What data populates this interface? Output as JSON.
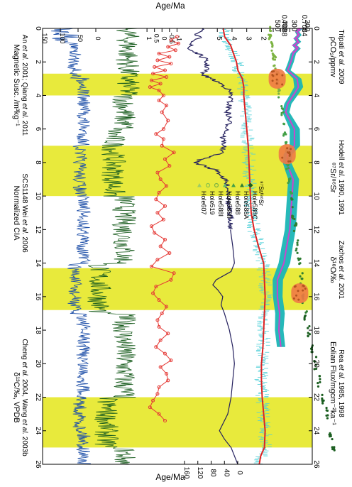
{
  "chart_data": {
    "type": "line",
    "orientation": "age axis vertical (top to bottom), panels stacked left to right, labels rotated",
    "age_axis": {
      "label": "Age/Ma",
      "range": [
        0,
        26
      ],
      "ticks": [
        "0",
        "2",
        "4",
        "6",
        "8",
        "10",
        "12",
        "14",
        "16",
        "18",
        "20",
        "22",
        "24",
        "26"
      ]
    },
    "highlight_bands": [
      {
        "from": 2.7,
        "to": 4.0
      },
      {
        "from": 7.0,
        "to": 10.0
      },
      {
        "from": 14.3,
        "to": 16.8
      },
      {
        "from": 22.0,
        "to": 25.0
      }
    ],
    "band_color": "#e8ea3c",
    "panels": {
      "co2": {
        "label": "ρCO₂/ppmv",
        "source_a": "Tripati",
        "source_b": "et al.",
        "source_c": "2009",
        "scale": "log",
        "range": [
          150,
          500
        ],
        "ticks": [
          "200",
          "300",
          "400",
          "500"
        ],
        "band_color": "#1ab5b5",
        "line_color": "#cc44cc",
        "points": [
          [
            0.0,
            215
          ],
          [
            0.2,
            240
          ],
          [
            0.4,
            225
          ],
          [
            0.6,
            250
          ],
          [
            0.8,
            230
          ],
          [
            1.0,
            260
          ],
          [
            1.2,
            235
          ],
          [
            1.5,
            270
          ],
          [
            2.0,
            290
          ],
          [
            2.5,
            320
          ],
          [
            3.0,
            240
          ],
          [
            3.5,
            230
          ],
          [
            4.0,
            270
          ],
          [
            4.5,
            320
          ],
          [
            5.0,
            340
          ],
          [
            6.0,
            260
          ],
          [
            7.0,
            260
          ],
          [
            7.5,
            320
          ],
          [
            8.0,
            330
          ],
          [
            8.5,
            300
          ],
          [
            9.0,
            270
          ],
          [
            10.0,
            280
          ],
          [
            11.0,
            290
          ],
          [
            12.0,
            300
          ],
          [
            13.0,
            330
          ],
          [
            14.0,
            360
          ],
          [
            15.0,
            440
          ],
          [
            16.0,
            440
          ],
          [
            17.0,
            410
          ],
          [
            18.0,
            420
          ],
          [
            19.0,
            395
          ]
        ],
        "band_halfwidth": [
          [
            0,
            15
          ],
          [
            3,
            30
          ],
          [
            6,
            40
          ],
          [
            9,
            45
          ],
          [
            12,
            50
          ],
          [
            15,
            70
          ],
          [
            18,
            55
          ],
          [
            19,
            50
          ]
        ]
      },
      "sr": {
        "label": "⁸⁷Sr/⁸⁶Sr",
        "source_a": "Hodell",
        "source_b": "et al.",
        "source_c": "1990, 1991",
        "range": [
          0.7082,
          0.70905
        ],
        "ticks": [
          "0.7084",
          "0.7088"
        ],
        "legend_title": "⁸⁷Sr/⁸⁶Sr",
        "legend": [
          {
            "name": "Hole588C",
            "color": "#1b5e20",
            "marker": "diamond"
          },
          {
            "name": "Hole588A",
            "color": "#2e7d32",
            "marker": "triangle"
          },
          {
            "name": "Hole588",
            "color": "#43a047",
            "marker": "triangle"
          },
          {
            "name": "Hole588II",
            "color": "#66bb6a",
            "marker": "triangle"
          },
          {
            "name": "Hole588I",
            "color": "#7cb342",
            "marker": "circle"
          },
          {
            "name": "Hole519",
            "color": "#8bc34a",
            "marker": "circle"
          },
          {
            "name": "Hole607",
            "color": "#9ccc65",
            "marker": "triangle"
          }
        ],
        "points": [
          [
            0.2,
            0.70905
          ],
          [
            0.5,
            0.70904
          ],
          [
            1.0,
            0.70901
          ],
          [
            1.5,
            0.70898
          ],
          [
            2.0,
            0.70895
          ],
          [
            2.5,
            0.70893
          ],
          [
            3.0,
            0.7089
          ],
          [
            4.0,
            0.70885
          ],
          [
            5.0,
            0.7088
          ],
          [
            6.0,
            0.70875
          ],
          [
            7.0,
            0.70872
          ],
          [
            8.0,
            0.70869
          ],
          [
            9.0,
            0.70866
          ],
          [
            10.0,
            0.70862
          ],
          [
            11.0,
            0.70858
          ],
          [
            12.0,
            0.70854
          ],
          [
            13.0,
            0.7085
          ],
          [
            14.0,
            0.70846
          ],
          [
            15.0,
            0.70842
          ],
          [
            16.0,
            0.70838
          ],
          [
            17.0,
            0.70833
          ],
          [
            18.0,
            0.70827
          ],
          [
            19.0,
            0.70821
          ],
          [
            20.0,
            0.70814
          ],
          [
            21.0,
            0.70807
          ],
          [
            22.0,
            0.70799
          ],
          [
            23.0,
            0.70791
          ],
          [
            24.0,
            0.70785
          ],
          [
            24.8,
            0.70778
          ]
        ],
        "ellipses": [
          [
            3.0,
            0.7089
          ],
          [
            7.5,
            0.7087
          ],
          [
            15.8,
            0.70845
          ]
        ]
      },
      "d18o": {
        "label": "δ¹⁸O/‰",
        "source_a": "Zachos",
        "source_b": "et al.",
        "source_c": "2001",
        "range": [
          5.3,
          1.2
        ],
        "ticks": [
          "2",
          "3",
          "4",
          "5"
        ],
        "color_raw": "#4fd0d8",
        "color_smooth": "#dd2222",
        "points": [
          [
            0.0,
            4.6
          ],
          [
            0.5,
            4.5
          ],
          [
            1.0,
            4.1
          ],
          [
            1.5,
            3.9
          ],
          [
            2.0,
            3.7
          ],
          [
            2.5,
            3.6
          ],
          [
            3.0,
            3.3
          ],
          [
            3.5,
            3.2
          ],
          [
            4.0,
            3.2
          ],
          [
            5.0,
            3.1
          ],
          [
            6.0,
            3.0
          ],
          [
            7.0,
            2.9
          ],
          [
            8.0,
            2.85
          ],
          [
            9.0,
            2.8
          ],
          [
            10.0,
            2.75
          ],
          [
            11.0,
            2.7
          ],
          [
            12.0,
            2.5
          ],
          [
            13.0,
            2.2
          ],
          [
            14.0,
            1.85
          ],
          [
            15.0,
            1.8
          ],
          [
            16.0,
            1.75
          ],
          [
            17.0,
            1.8
          ],
          [
            18.0,
            1.85
          ],
          [
            19.0,
            1.9
          ],
          [
            20.0,
            2.0
          ],
          [
            21.0,
            2.0
          ],
          [
            22.0,
            1.95
          ],
          [
            23.0,
            1.85
          ],
          [
            24.0,
            1.75
          ],
          [
            25.0,
            1.8
          ],
          [
            25.5,
            2.05
          ],
          [
            26.0,
            2.15
          ]
        ]
      },
      "eolian": {
        "label": "Eolian Flux/mgcm⁻²ka⁻¹",
        "source_a": "Rea",
        "source_b": "et al.",
        "source_c": "1985, 1998",
        "range": [
          0,
          160
        ],
        "ticks": [
          "0",
          "40",
          "80",
          "120",
          "160"
        ],
        "color": "#24205e",
        "points": [
          [
            0.0,
            100
          ],
          [
            0.3,
            130
          ],
          [
            0.6,
            115
          ],
          [
            0.9,
            140
          ],
          [
            1.2,
            150
          ],
          [
            1.5,
            120
          ],
          [
            1.8,
            100
          ],
          [
            2.1,
            95
          ],
          [
            2.4,
            90
          ],
          [
            2.7,
            110
          ],
          [
            3.0,
            80
          ],
          [
            3.3,
            50
          ],
          [
            3.6,
            30
          ],
          [
            4.0,
            20
          ],
          [
            4.5,
            25
          ],
          [
            5.0,
            30
          ],
          [
            5.5,
            25
          ],
          [
            6.0,
            30
          ],
          [
            6.5,
            45
          ],
          [
            7.0,
            40
          ],
          [
            7.5,
            55
          ],
          [
            7.8,
            110
          ],
          [
            8.0,
            130
          ],
          [
            8.2,
            100
          ],
          [
            8.5,
            60
          ],
          [
            9.0,
            40
          ],
          [
            9.5,
            30
          ],
          [
            10.0,
            25
          ],
          [
            10.5,
            30
          ],
          [
            11.0,
            25
          ],
          [
            11.5,
            20
          ],
          [
            12.0,
            22
          ],
          [
            13.0,
            15
          ],
          [
            14.0,
            10
          ],
          [
            14.5,
            20
          ],
          [
            15.0,
            65
          ],
          [
            15.3,
            75
          ],
          [
            15.6,
            60
          ],
          [
            16.0,
            45
          ],
          [
            16.5,
            50
          ],
          [
            17.0,
            40
          ],
          [
            18.0,
            25
          ],
          [
            19.0,
            15
          ],
          [
            20.0,
            10
          ],
          [
            21.0,
            15
          ],
          [
            22.0,
            20
          ],
          [
            23.0,
            30
          ],
          [
            24.0,
            55
          ],
          [
            24.5,
            40
          ],
          [
            25.0,
            20
          ],
          [
            25.5,
            10
          ],
          [
            26.0,
            0
          ]
        ]
      },
      "cia": {
        "label": "Normalized CIA",
        "source_a": "SCS1148  Wei",
        "source_b": "et al.",
        "source_c": "2006",
        "range": [
          -1.5,
          1.1
        ],
        "ticks": [
          "-1",
          "-0.5",
          "0",
          "0.5",
          "1"
        ],
        "color": "#e53935",
        "points": [
          [
            0.5,
            -1.0
          ],
          [
            0.7,
            -0.6
          ],
          [
            0.9,
            -1.1
          ],
          [
            1.1,
            -0.4
          ],
          [
            1.3,
            -0.9
          ],
          [
            1.5,
            0.2
          ],
          [
            1.7,
            -0.5
          ],
          [
            1.9,
            0.3
          ],
          [
            2.1,
            -0.6
          ],
          [
            2.3,
            0.5
          ],
          [
            2.5,
            -0.2
          ],
          [
            2.7,
            0.6
          ],
          [
            2.9,
            -0.3
          ],
          [
            3.1,
            0.7
          ],
          [
            3.3,
            0.1
          ],
          [
            3.5,
            0.8
          ],
          [
            3.7,
            0.2
          ],
          [
            4.0,
            -0.1
          ],
          [
            4.3,
            0.2
          ],
          [
            4.6,
            -0.3
          ],
          [
            5.0,
            0.0
          ],
          [
            5.5,
            -0.4
          ],
          [
            6.0,
            -0.1
          ],
          [
            6.3,
            0.4
          ],
          [
            6.6,
            -0.1
          ],
          [
            7.0,
            0.0
          ],
          [
            7.4,
            -0.8
          ],
          [
            7.8,
            -0.2
          ],
          [
            8.2,
            -0.5
          ],
          [
            8.6,
            0.3
          ],
          [
            9.0,
            0.1
          ],
          [
            9.4,
            -0.3
          ],
          [
            9.8,
            0.2
          ],
          [
            10.2,
            0.4
          ],
          [
            10.6,
            -0.2
          ],
          [
            11.0,
            0.3
          ],
          [
            11.4,
            -0.1
          ],
          [
            11.8,
            0.7
          ],
          [
            12.2,
            0.5
          ],
          [
            12.6,
            -0.2
          ],
          [
            13.0,
            0.1
          ],
          [
            13.4,
            -0.5
          ],
          [
            13.8,
            0.3
          ],
          [
            14.2,
            0.7
          ],
          [
            14.6,
            -0.8
          ],
          [
            15.0,
            -0.6
          ],
          [
            15.4,
            0.4
          ],
          [
            15.8,
            0.6
          ],
          [
            16.2,
            0.2
          ],
          [
            16.6,
            -0.3
          ],
          [
            17.0,
            0.0
          ],
          [
            17.4,
            0.3
          ],
          [
            17.8,
            0.2
          ],
          [
            18.2,
            -0.4
          ],
          [
            18.6,
            0.1
          ],
          [
            19.0,
            0.4
          ],
          [
            19.4,
            -0.2
          ],
          [
            19.8,
            -0.6
          ],
          [
            20.2,
            0.1
          ],
          [
            20.6,
            -0.3
          ],
          [
            21.0,
            -0.4
          ],
          [
            21.4,
            0.2
          ],
          [
            21.8,
            0.3
          ],
          [
            22.2,
            0.6
          ],
          [
            22.6,
            0.8
          ],
          [
            23.0,
            0.2
          ],
          [
            23.4,
            -0.2
          ]
        ]
      },
      "d13c": {
        "label": "δ¹³C/‰, VPDB",
        "source_a": "Cheng",
        "source_b": "et al.",
        "source_c": "2004, Wang",
        "source_d": "et al.",
        "source_e": "2003b",
        "color": "#1b5e20"
      },
      "magsusc": {
        "label": "Magnetic Susc. /m³kg⁻¹",
        "source_a": "An",
        "source_b": "et al.",
        "source_c": "2001; Qiang",
        "source_d": "et al.",
        "source_e": "2011",
        "range": [
          0,
          150
        ],
        "ticks": [
          "0",
          "50",
          "100",
          "150"
        ],
        "color": "#1e4fa8"
      }
    }
  }
}
